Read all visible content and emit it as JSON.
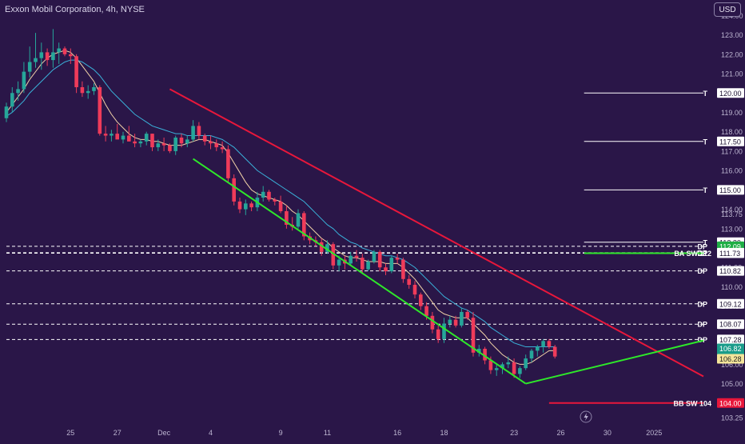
{
  "header": {
    "title": "Exxon Mobil Corporation, 4h, NYSE",
    "currency_label": "USD"
  },
  "colors": {
    "background": "#2a1648",
    "up_candle": "#26a69a",
    "down_candle": "#ef3b5a",
    "trend_red": "#e8173b",
    "trend_green": "#2ee82a",
    "ma_fast": "#f2d3a8",
    "ma_slow": "#3ab0d8"
  },
  "chart_data": {
    "type": "candlestick",
    "symbol": "Exxon Mobil Corporation",
    "interval": "4h",
    "exchange": "NYSE",
    "currency": "USD",
    "y_axis": {
      "range": [
        103.0,
        124.8
      ],
      "ticks": [
        "103.25",
        "104.00",
        "105.00",
        "106.00",
        "107.00",
        "108.00",
        "109.00",
        "110.00",
        "111.00",
        "112.00",
        "113.00",
        "113.75",
        "114.00",
        "115.00",
        "116.00",
        "117.00",
        "118.00",
        "119.00",
        "120.00",
        "121.00",
        "122.00",
        "123.00",
        "124.00"
      ]
    },
    "x_axis": {
      "ticks": [
        {
          "label": "25",
          "i": 11
        },
        {
          "label": "27",
          "i": 19
        },
        {
          "label": "Dec",
          "i": 27
        },
        {
          "label": "4",
          "i": 35
        },
        {
          "label": "9",
          "i": 47
        },
        {
          "label": "11",
          "i": 55
        },
        {
          "label": "16",
          "i": 67
        },
        {
          "label": "18",
          "i": 75
        },
        {
          "label": "23",
          "i": 87
        },
        {
          "label": "26",
          "i": 95
        },
        {
          "label": "30",
          "i": 103
        },
        {
          "label": "2025",
          "i": 111
        }
      ]
    },
    "candles": [
      {
        "o": 118.7,
        "h": 119.5,
        "l": 118.5,
        "c": 119.3
      },
      {
        "o": 119.3,
        "h": 120.3,
        "l": 119.0,
        "c": 120.0
      },
      {
        "o": 120.0,
        "h": 120.6,
        "l": 119.6,
        "c": 120.2
      },
      {
        "o": 120.2,
        "h": 121.6,
        "l": 120.0,
        "c": 121.1
      },
      {
        "o": 121.1,
        "h": 122.4,
        "l": 120.8,
        "c": 121.6
      },
      {
        "o": 121.6,
        "h": 123.1,
        "l": 121.3,
        "c": 121.8
      },
      {
        "o": 121.8,
        "h": 122.6,
        "l": 121.2,
        "c": 122.1
      },
      {
        "o": 122.1,
        "h": 122.3,
        "l": 121.4,
        "c": 121.7
      },
      {
        "o": 121.7,
        "h": 123.3,
        "l": 121.3,
        "c": 122.1
      },
      {
        "o": 122.1,
        "h": 122.6,
        "l": 121.5,
        "c": 122.3
      },
      {
        "o": 122.3,
        "h": 122.4,
        "l": 121.9,
        "c": 122.0
      },
      {
        "o": 122.0,
        "h": 122.3,
        "l": 121.5,
        "c": 121.9
      },
      {
        "o": 121.9,
        "h": 122.0,
        "l": 120.0,
        "c": 120.3
      },
      {
        "o": 120.3,
        "h": 120.6,
        "l": 119.8,
        "c": 120.0
      },
      {
        "o": 120.0,
        "h": 120.4,
        "l": 119.7,
        "c": 120.1
      },
      {
        "o": 120.1,
        "h": 120.5,
        "l": 119.9,
        "c": 120.3
      },
      {
        "o": 120.3,
        "h": 120.4,
        "l": 117.8,
        "c": 117.9
      },
      {
        "o": 117.9,
        "h": 118.3,
        "l": 117.5,
        "c": 117.8
      },
      {
        "o": 117.8,
        "h": 118.1,
        "l": 117.5,
        "c": 117.9
      },
      {
        "o": 117.9,
        "h": 118.4,
        "l": 117.7,
        "c": 117.6
      },
      {
        "o": 117.6,
        "h": 118.0,
        "l": 117.4,
        "c": 117.8
      },
      {
        "o": 117.8,
        "h": 118.3,
        "l": 117.5,
        "c": 117.5
      },
      {
        "o": 117.5,
        "h": 117.9,
        "l": 117.2,
        "c": 117.4
      },
      {
        "o": 117.4,
        "h": 117.6,
        "l": 117.2,
        "c": 117.5
      },
      {
        "o": 117.5,
        "h": 118.0,
        "l": 117.3,
        "c": 117.9
      },
      {
        "o": 117.9,
        "h": 117.9,
        "l": 117.0,
        "c": 117.2
      },
      {
        "o": 117.2,
        "h": 117.6,
        "l": 117.0,
        "c": 117.4
      },
      {
        "o": 117.4,
        "h": 117.7,
        "l": 117.0,
        "c": 117.3
      },
      {
        "o": 117.3,
        "h": 117.4,
        "l": 116.9,
        "c": 117.0
      },
      {
        "o": 117.0,
        "h": 117.8,
        "l": 116.8,
        "c": 117.7
      },
      {
        "o": 117.7,
        "h": 117.9,
        "l": 117.2,
        "c": 117.4
      },
      {
        "o": 117.4,
        "h": 117.8,
        "l": 117.2,
        "c": 117.6
      },
      {
        "o": 117.6,
        "h": 118.6,
        "l": 117.5,
        "c": 118.3
      },
      {
        "o": 118.3,
        "h": 118.5,
        "l": 117.6,
        "c": 117.8
      },
      {
        "o": 117.8,
        "h": 117.9,
        "l": 117.3,
        "c": 117.5
      },
      {
        "o": 117.5,
        "h": 117.8,
        "l": 117.1,
        "c": 117.4
      },
      {
        "o": 117.4,
        "h": 117.6,
        "l": 117.0,
        "c": 117.2
      },
      {
        "o": 117.2,
        "h": 117.5,
        "l": 116.9,
        "c": 117.1
      },
      {
        "o": 117.1,
        "h": 117.3,
        "l": 115.4,
        "c": 115.6
      },
      {
        "o": 115.6,
        "h": 115.8,
        "l": 114.2,
        "c": 114.4
      },
      {
        "o": 114.4,
        "h": 114.6,
        "l": 113.8,
        "c": 114.0
      },
      {
        "o": 114.0,
        "h": 114.5,
        "l": 113.7,
        "c": 114.3
      },
      {
        "o": 114.3,
        "h": 114.4,
        "l": 113.9,
        "c": 114.1
      },
      {
        "o": 114.1,
        "h": 114.9,
        "l": 113.9,
        "c": 114.6
      },
      {
        "o": 114.6,
        "h": 115.2,
        "l": 114.4,
        "c": 114.9
      },
      {
        "o": 114.9,
        "h": 115.0,
        "l": 114.4,
        "c": 114.5
      },
      {
        "o": 114.5,
        "h": 114.6,
        "l": 114.2,
        "c": 114.4
      },
      {
        "o": 114.4,
        "h": 114.7,
        "l": 113.8,
        "c": 113.9
      },
      {
        "o": 113.9,
        "h": 114.2,
        "l": 113.0,
        "c": 113.2
      },
      {
        "o": 113.2,
        "h": 113.6,
        "l": 112.9,
        "c": 113.1
      },
      {
        "o": 113.1,
        "h": 114.0,
        "l": 113.0,
        "c": 113.8
      },
      {
        "o": 113.8,
        "h": 113.9,
        "l": 112.4,
        "c": 112.6
      },
      {
        "o": 112.6,
        "h": 112.8,
        "l": 112.2,
        "c": 112.4
      },
      {
        "o": 112.4,
        "h": 112.6,
        "l": 112.1,
        "c": 112.3
      },
      {
        "o": 112.3,
        "h": 112.5,
        "l": 111.6,
        "c": 111.8
      },
      {
        "o": 111.8,
        "h": 112.4,
        "l": 111.7,
        "c": 112.2
      },
      {
        "o": 112.2,
        "h": 112.3,
        "l": 110.9,
        "c": 111.1
      },
      {
        "o": 111.1,
        "h": 111.6,
        "l": 110.8,
        "c": 111.4
      },
      {
        "o": 111.4,
        "h": 111.6,
        "l": 110.9,
        "c": 111.2
      },
      {
        "o": 111.2,
        "h": 111.8,
        "l": 111.1,
        "c": 111.6
      },
      {
        "o": 111.6,
        "h": 111.9,
        "l": 111.3,
        "c": 111.5
      },
      {
        "o": 111.5,
        "h": 111.7,
        "l": 110.7,
        "c": 110.9
      },
      {
        "o": 110.9,
        "h": 111.4,
        "l": 110.8,
        "c": 111.3
      },
      {
        "o": 111.3,
        "h": 111.9,
        "l": 111.2,
        "c": 111.8
      },
      {
        "o": 111.8,
        "h": 111.9,
        "l": 110.8,
        "c": 111.0
      },
      {
        "o": 111.0,
        "h": 111.2,
        "l": 110.6,
        "c": 110.8
      },
      {
        "o": 110.8,
        "h": 111.6,
        "l": 110.7,
        "c": 111.5
      },
      {
        "o": 111.5,
        "h": 111.7,
        "l": 111.2,
        "c": 111.4
      },
      {
        "o": 111.4,
        "h": 111.5,
        "l": 110.2,
        "c": 110.4
      },
      {
        "o": 110.4,
        "h": 110.6,
        "l": 109.9,
        "c": 110.1
      },
      {
        "o": 110.1,
        "h": 110.3,
        "l": 109.4,
        "c": 109.6
      },
      {
        "o": 109.6,
        "h": 109.7,
        "l": 108.8,
        "c": 109.0
      },
      {
        "o": 109.0,
        "h": 109.2,
        "l": 108.3,
        "c": 108.5
      },
      {
        "o": 108.5,
        "h": 108.7,
        "l": 107.6,
        "c": 107.8
      },
      {
        "o": 107.8,
        "h": 108.0,
        "l": 107.1,
        "c": 107.3
      },
      {
        "o": 107.3,
        "h": 108.4,
        "l": 107.1,
        "c": 108.1
      },
      {
        "o": 108.1,
        "h": 108.5,
        "l": 107.9,
        "c": 108.3
      },
      {
        "o": 108.3,
        "h": 108.5,
        "l": 107.9,
        "c": 108.0
      },
      {
        "o": 108.0,
        "h": 108.9,
        "l": 107.9,
        "c": 108.7
      },
      {
        "o": 108.7,
        "h": 108.8,
        "l": 108.3,
        "c": 108.4
      },
      {
        "o": 108.4,
        "h": 108.7,
        "l": 106.4,
        "c": 106.6
      },
      {
        "o": 106.6,
        "h": 107.0,
        "l": 106.4,
        "c": 106.8
      },
      {
        "o": 106.8,
        "h": 106.9,
        "l": 106.0,
        "c": 106.2
      },
      {
        "o": 106.2,
        "h": 106.4,
        "l": 105.5,
        "c": 105.7
      },
      {
        "o": 105.7,
        "h": 106.0,
        "l": 105.4,
        "c": 105.8
      },
      {
        "o": 105.8,
        "h": 106.1,
        "l": 105.5,
        "c": 106.0
      },
      {
        "o": 106.0,
        "h": 106.4,
        "l": 105.8,
        "c": 106.1
      },
      {
        "o": 106.1,
        "h": 106.3,
        "l": 105.3,
        "c": 105.5
      },
      {
        "o": 105.5,
        "h": 105.9,
        "l": 105.3,
        "c": 105.8
      },
      {
        "o": 105.8,
        "h": 106.5,
        "l": 105.7,
        "c": 106.3
      },
      {
        "o": 106.3,
        "h": 106.8,
        "l": 106.1,
        "c": 106.7
      },
      {
        "o": 106.7,
        "h": 107.0,
        "l": 106.4,
        "c": 106.9
      },
      {
        "o": 106.9,
        "h": 107.3,
        "l": 106.6,
        "c": 107.2
      },
      {
        "o": 107.2,
        "h": 107.3,
        "l": 106.8,
        "c": 106.9
      },
      {
        "o": 106.9,
        "h": 107.0,
        "l": 106.3,
        "c": 106.4
      }
    ],
    "moving_averages": [
      {
        "color_key": "ma_fast",
        "values": [
          119.0,
          119.4,
          119.8,
          120.2,
          120.7,
          121.1,
          121.5,
          121.8,
          122.0,
          122.1,
          122.2,
          122.1,
          121.8,
          121.4,
          121.0,
          120.6,
          120.0,
          119.4,
          118.9,
          118.5,
          118.2,
          117.9,
          117.7,
          117.6,
          117.6,
          117.5,
          117.5,
          117.4,
          117.3,
          117.3,
          117.3,
          117.4,
          117.5,
          117.6,
          117.6,
          117.5,
          117.4,
          117.3,
          116.9,
          116.4,
          115.9,
          115.4,
          115.0,
          114.8,
          114.7,
          114.6,
          114.5,
          114.4,
          114.2,
          113.9,
          113.7,
          113.4,
          113.1,
          112.8,
          112.5,
          112.3,
          112.0,
          111.8,
          111.6,
          111.5,
          111.5,
          111.4,
          111.3,
          111.3,
          111.3,
          111.2,
          111.2,
          111.2,
          111.0,
          110.7,
          110.4,
          110.0,
          109.6,
          109.2,
          108.8,
          108.6,
          108.5,
          108.4,
          108.4,
          108.4,
          108.1,
          107.8,
          107.5,
          107.1,
          106.8,
          106.5,
          106.3,
          106.1,
          106.0,
          106.0,
          106.1,
          106.3,
          106.5,
          106.7,
          106.7
        ]
      },
      {
        "color_key": "ma_slow",
        "values": [
          118.8,
          119.0,
          119.3,
          119.6,
          120.0,
          120.3,
          120.6,
          120.9,
          121.2,
          121.4,
          121.6,
          121.7,
          121.7,
          121.6,
          121.4,
          121.2,
          120.9,
          120.5,
          120.1,
          119.8,
          119.5,
          119.2,
          118.9,
          118.7,
          118.5,
          118.3,
          118.2,
          118.1,
          118.0,
          117.9,
          117.9,
          117.8,
          117.8,
          117.8,
          117.8,
          117.8,
          117.7,
          117.6,
          117.4,
          117.2,
          116.9,
          116.6,
          116.3,
          116.0,
          115.8,
          115.6,
          115.4,
          115.2,
          115.0,
          114.8,
          114.6,
          114.4,
          114.1,
          113.8,
          113.5,
          113.2,
          113.0,
          112.7,
          112.5,
          112.3,
          112.2,
          112.0,
          111.9,
          111.8,
          111.7,
          111.6,
          111.6,
          111.5,
          111.4,
          111.2,
          111.0,
          110.7,
          110.4,
          110.1,
          109.8,
          109.5,
          109.3,
          109.1,
          108.9,
          108.8,
          108.6,
          108.4,
          108.2,
          107.9,
          107.7,
          107.5,
          107.3,
          107.1,
          107.0,
          106.9,
          106.9,
          106.9,
          106.9,
          106.9,
          106.9
        ]
      }
    ],
    "trendlines": [
      {
        "color_key": "trend_red",
        "i1": 28,
        "p1": 120.2,
        "i2": 123,
        "p2": 104.8
      },
      {
        "color_key": "trend_green",
        "i1": 32,
        "p1": 116.6,
        "i2": 89,
        "p2": 105.0
      },
      {
        "color_key": "trend_green",
        "i1": 89,
        "p1": 105.0,
        "i2": 130,
        "p2": 108.0
      },
      {
        "color_key": "trend_green",
        "i1": 99,
        "p1": 111.73,
        "i2": 125,
        "p2": 111.73
      },
      {
        "color_key": "trend_red",
        "i1": 93,
        "p1": 104.0,
        "i2": 124,
        "p2": 104.0
      }
    ],
    "horizontal_levels": [
      {
        "price": 120.0,
        "tag": "T",
        "label": "120.00",
        "style": "solid",
        "i1": 99
      },
      {
        "price": 117.5,
        "tag": "T",
        "label": "117.50",
        "style": "solid",
        "i1": 99
      },
      {
        "price": 115.0,
        "tag": "T",
        "label": "115.00",
        "style": "solid",
        "i1": 99
      },
      {
        "price": 112.3,
        "tag": "T",
        "label": "112.30",
        "style": "solid",
        "i1": 99
      },
      {
        "price": 112.09,
        "tag": "DP",
        "label": "112.09",
        "style": "dashed",
        "i1": 0,
        "badge": "#1fae45"
      },
      {
        "price": 111.76,
        "tag": "DP",
        "label": "111.76",
        "style": "dashed",
        "i1": 0
      },
      {
        "price": 111.75,
        "tag": "DP",
        "label": "111.75",
        "style": "dashed",
        "i1": 0
      },
      {
        "price": 111.73,
        "tag": "DP",
        "label": "111.73",
        "style": "dashed",
        "i1": 0
      },
      {
        "price": 110.82,
        "tag": "DP",
        "label": "110.82",
        "style": "dashed",
        "i1": 0
      },
      {
        "price": 109.12,
        "tag": "DP",
        "label": "109.12",
        "style": "dashed",
        "i1": 0
      },
      {
        "price": 108.07,
        "tag": "DP",
        "label": "108.07",
        "style": "dashed",
        "i1": 0
      },
      {
        "price": 107.28,
        "tag": "DP",
        "label": "107.28",
        "style": "dashed",
        "i1": 0
      }
    ],
    "axis_badges": [
      {
        "price": 106.82,
        "label": "106.82",
        "color": "#1a9c8a"
      },
      {
        "price": 106.37,
        "label": "106.37",
        "color": "#1a9c8a"
      },
      {
        "price": 106.28,
        "label": "106.28",
        "color": "#f5e59a",
        "text_color": "#222222"
      },
      {
        "price": 104.0,
        "label": "104.00",
        "color": "#e8173b"
      }
    ],
    "annotations": [
      {
        "text": "BA SW 112",
        "price": 111.73
      },
      {
        "text": "BB SW 104",
        "price": 104.0
      }
    ]
  }
}
